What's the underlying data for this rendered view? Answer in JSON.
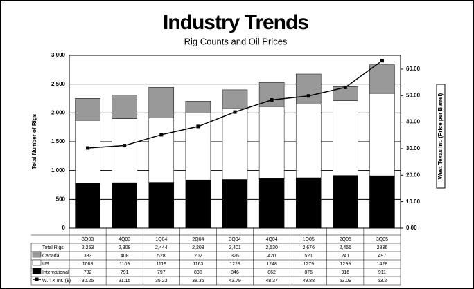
{
  "chart_data": {
    "type": "bar",
    "stacked": true,
    "title": "Industry Trends",
    "subtitle": "Rig Counts and Oil Prices",
    "y_label": "Total Number of Rigs",
    "y2_label": "West Texas Int. (Price per Barrel)",
    "categories": [
      "3Q03",
      "4Q03",
      "1Q04",
      "2Q04",
      "3Q04",
      "4Q04",
      "1Q05",
      "2Q05",
      "3Q05"
    ],
    "totals_name": "Total Rigs",
    "totals": [
      2253,
      2308,
      2444,
      2203,
      2401,
      2530,
      2676,
      2456,
      2836
    ],
    "totals_labels": [
      "2,253",
      "2,308",
      "2,444",
      "2,203",
      "2,401",
      "2,530",
      "2,676",
      "2,456",
      "2836"
    ],
    "series": [
      {
        "name": "International",
        "color": "#000000",
        "values": [
          782,
          791,
          797,
          838,
          846,
          862,
          876,
          916,
          911
        ]
      },
      {
        "name": "US",
        "color": "#ffffff",
        "values": [
          1088,
          1109,
          1119,
          1163,
          1229,
          1248,
          1279,
          1299,
          1428
        ]
      },
      {
        "name": "Canada",
        "color": "#999999",
        "values": [
          383,
          408,
          528,
          202,
          326,
          420,
          521,
          241,
          497
        ]
      },
      {
        "name": "W. TX Int. ($)",
        "color": "#000000",
        "type": "line",
        "axis": "y2",
        "values": [
          30.25,
          31.15,
          35.23,
          38.36,
          43.79,
          48.37,
          49.88,
          53.09,
          63.2
        ]
      }
    ],
    "table_order": [
      2,
      1,
      0,
      3
    ],
    "ylim": [
      0,
      3000
    ],
    "yticks": [
      0,
      500,
      {
        "value": 1000,
        "label": "1,000"
      },
      {
        "value": 1500,
        "label": "1,500"
      },
      {
        "value": 2000,
        "label": "2,000"
      },
      {
        "value": 2500,
        "label": "2,500"
      },
      {
        "value": 3000,
        "label": "3,000"
      }
    ],
    "y2lim": [
      0,
      65.2
    ],
    "y2ticks": [
      {
        "value": 0,
        "label": "0.00"
      },
      {
        "value": 10,
        "label": "10.00"
      },
      {
        "value": 20,
        "label": "20.00"
      },
      {
        "value": 30,
        "label": "30.00"
      },
      {
        "value": 40,
        "label": "40.00"
      },
      {
        "value": 50,
        "label": "50.00"
      },
      {
        "value": 60,
        "label": "60.00"
      }
    ],
    "grid": true
  }
}
